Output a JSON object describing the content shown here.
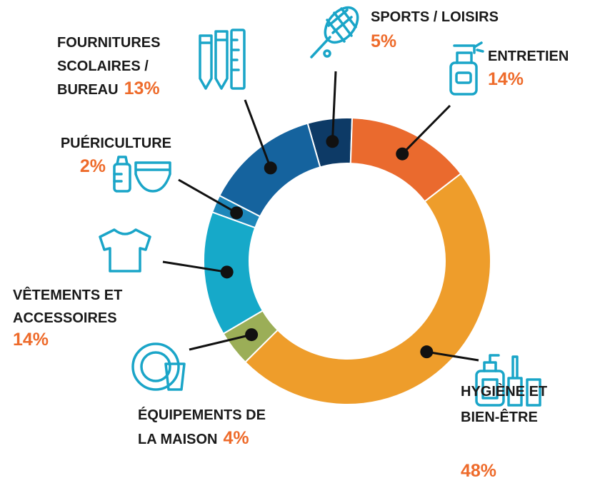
{
  "chart_data": {
    "type": "donut",
    "categories": [
      [
        "SPORTS / LOISIRS"
      ],
      [
        "ENTRETIEN"
      ],
      [
        "HYGIÈNE ET",
        "BIEN-ÊTRE"
      ],
      [
        "ÉQUIPEMENTS DE",
        "LA MAISON"
      ],
      [
        "VÊTEMENTS ET",
        "ACCESSOIRES"
      ],
      [
        "PUÉRICULTURE"
      ],
      [
        "FOURNITURES",
        "SCOLAIRES /",
        "BUREAU"
      ]
    ],
    "values": [
      5,
      14,
      48,
      4,
      14,
      2,
      13
    ],
    "value_labels": [
      "5%",
      "14%",
      "48%",
      "4%",
      "14%",
      "2%",
      "13%"
    ],
    "colors": [
      "#0d3a66",
      "#ea6a2e",
      "#ee9d2b",
      "#9bae57",
      "#16a9c9",
      "#1d87ba",
      "#15639e"
    ]
  }
}
